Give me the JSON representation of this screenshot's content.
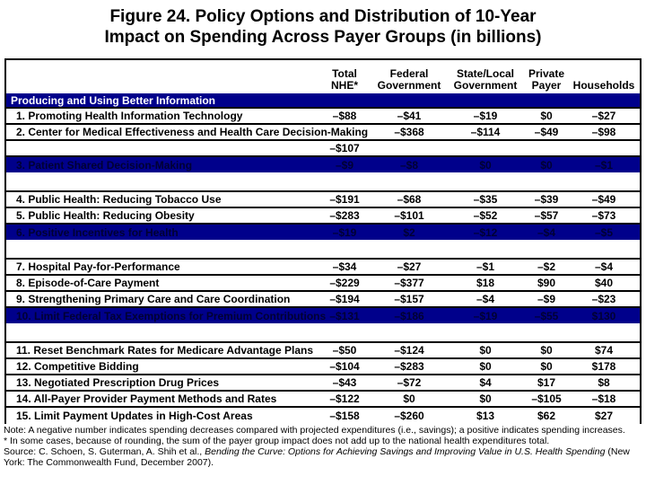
{
  "title": {
    "line1": "Figure 24. Policy Options and Distribution of 10-Year",
    "line2": "Impact on Spending Across Payer Groups (in billions)"
  },
  "colors": {
    "band_navy": "#00008B",
    "band_text_white": "#FFFFFF",
    "highlight_row_text": "#000033"
  },
  "table": {
    "columns": [
      {
        "line1": "Total",
        "line2": "NHE*"
      },
      {
        "line1": "Federal",
        "line2": "Government"
      },
      {
        "line1": "State/Local",
        "line2": "Government"
      },
      {
        "line1": "Private",
        "line2": "Payer"
      },
      {
        "line1": "",
        "line2": "Households"
      }
    ],
    "rows": [
      {
        "type": "section",
        "label": "Producing and Using Better Information"
      },
      {
        "type": "data",
        "label": "1. Promoting Health Information Technology",
        "values": [
          "–$88",
          "–$41",
          "–$19",
          "$0",
          "–$27"
        ]
      },
      {
        "type": "data",
        "label": "2. Center for Medical Effectiveness and Health Care Decision-Making",
        "values": [
          "",
          "–$368",
          "–$114",
          "–$49",
          "–$98"
        ]
      },
      {
        "type": "data",
        "label": "",
        "values": [
          "–$107",
          "",
          "",
          "",
          ""
        ]
      },
      {
        "type": "data",
        "highlight": true,
        "label": "3. Patient Shared Decision-Making",
        "values": [
          "–$9",
          "–$8",
          "$0",
          "$0",
          "–$1"
        ]
      },
      {
        "type": "spacer"
      },
      {
        "type": "data",
        "label": "4. Public Health: Reducing Tobacco Use",
        "values": [
          "–$191",
          "–$68",
          "–$35",
          "–$39",
          "–$49"
        ]
      },
      {
        "type": "data",
        "label": "5. Public Health: Reducing Obesity",
        "values": [
          "–$283",
          "–$101",
          "–$52",
          "–$57",
          "–$73"
        ]
      },
      {
        "type": "data",
        "highlight": true,
        "label": "6. Positive Incentives for Health",
        "values": [
          "–$19",
          "$2",
          "–$12",
          "–$4",
          "–$5"
        ]
      },
      {
        "type": "spacer"
      },
      {
        "type": "data",
        "label": "7. Hospital Pay-for-Performance",
        "values": [
          "–$34",
          "–$27",
          "–$1",
          "–$2",
          "–$4"
        ]
      },
      {
        "type": "data",
        "label": "8. Episode-of-Care Payment",
        "values": [
          "–$229",
          "–$377",
          "$18",
          "$90",
          "$40"
        ]
      },
      {
        "type": "data",
        "label": "9. Strengthening Primary Care and Care Coordination",
        "values": [
          "–$194",
          "–$157",
          "–$4",
          "–$9",
          "–$23"
        ]
      },
      {
        "type": "data",
        "highlight": true,
        "label": "10. Limit Federal Tax Exemptions for Premium Contributions",
        "values": [
          "–$131",
          "–$186",
          "–$19",
          "–$55",
          "$130"
        ]
      },
      {
        "type": "spacer"
      },
      {
        "type": "data",
        "label": "11. Reset Benchmark Rates for Medicare Advantage Plans",
        "values": [
          "–$50",
          "–$124",
          "$0",
          "$0",
          "$74"
        ]
      },
      {
        "type": "data",
        "label": "12. Competitive Bidding",
        "values": [
          "–$104",
          "–$283",
          "$0",
          "$0",
          "$178"
        ]
      },
      {
        "type": "data",
        "label": "13. Negotiated Prescription Drug Prices",
        "values": [
          "–$43",
          "–$72",
          "$4",
          "$17",
          "$8"
        ]
      },
      {
        "type": "data",
        "label": "14. All-Payer Provider Payment Methods and Rates",
        "values": [
          "–$122",
          "$0",
          "$0",
          "–$105",
          "–$18"
        ]
      },
      {
        "type": "data",
        "last": true,
        "label": "15. Limit Payment Updates in High-Cost Areas",
        "values": [
          "–$158",
          "–$260",
          "$13",
          "$62",
          "$27"
        ]
      }
    ]
  },
  "notes": {
    "note1": "Note: A negative number indicates spending decreases compared with projected expenditures (i.e., savings); a positive indicates spending increases.",
    "note2": "* In some cases, because of rounding, the sum of the payer group impact does not add up to the national health expenditures total.",
    "source_prefix": "Source: C. Schoen, S. Guterman, A. Shih et al., ",
    "source_title": "Bending the Curve: Options for Achieving Savings and Improving Value in U.S. Health Spending",
    "source_suffix": " (New York: The Commonwealth Fund, December 2007)."
  }
}
